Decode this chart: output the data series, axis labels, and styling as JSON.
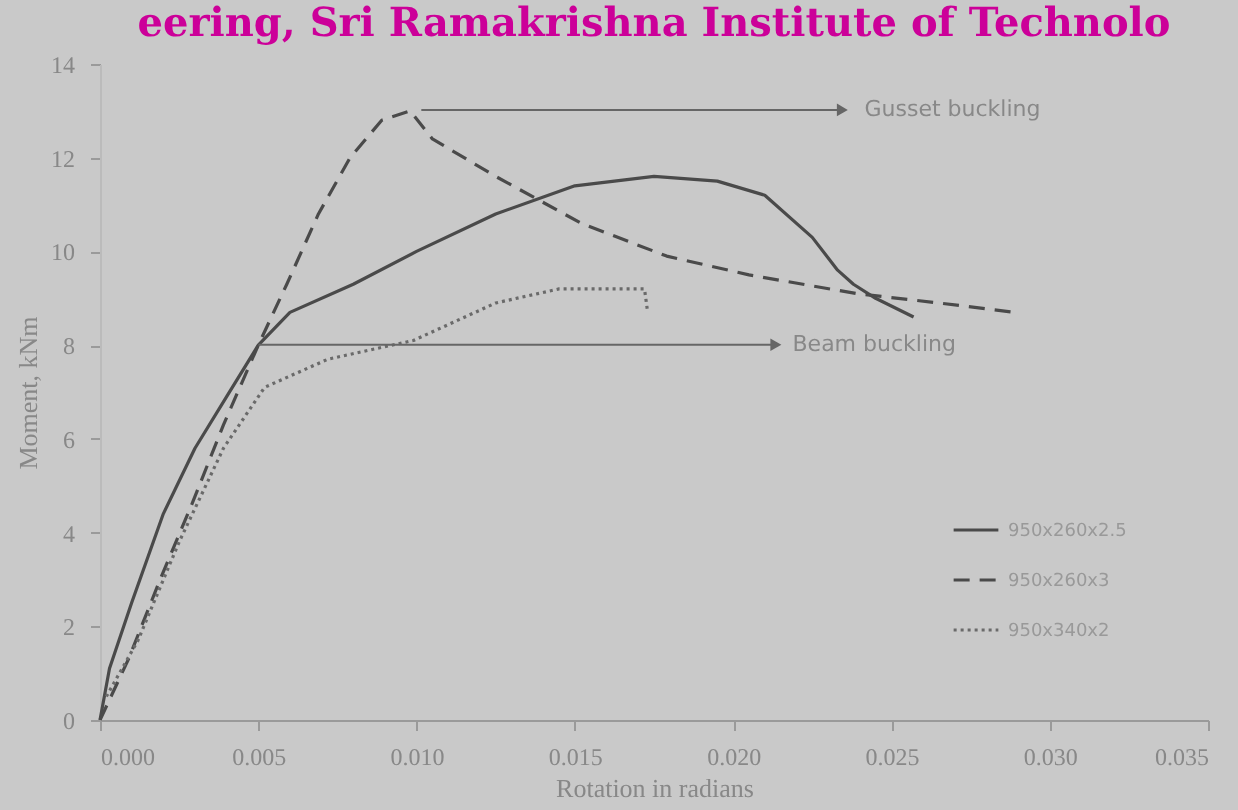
{
  "chart_data": {
    "type": "line",
    "title": "eering, Sri Ramakrishna Institute of Technolo",
    "xlabel": "Rotation in radians",
    "ylabel": "Moment, kNm",
    "xlim": [
      0,
      0.035
    ],
    "ylim": [
      0,
      14
    ],
    "xticks": [
      {
        "value": 0,
        "label": "0.000"
      },
      {
        "value": 0.005,
        "label": "0.005"
      },
      {
        "value": 0.01,
        "label": "0.010"
      },
      {
        "value": 0.015,
        "label": "0.015"
      },
      {
        "value": 0.02,
        "label": "0.020"
      },
      {
        "value": 0.025,
        "label": "0.025"
      },
      {
        "value": 0.03,
        "label": "0.030"
      },
      {
        "value": 0.035,
        "label": "0.035"
      }
    ],
    "yticks": [
      0,
      2,
      4,
      6,
      8,
      10,
      12,
      14
    ],
    "grid": false,
    "legend": "bottom right",
    "marker": "none",
    "series": [
      {
        "name": "950x260x2.5",
        "color": "#4a4a4a",
        "line_style": "solid",
        "x": [
          0,
          0.0003,
          0.001,
          0.002,
          0.003,
          0.004,
          0.005,
          0.006,
          0.008,
          0.01,
          0.0125,
          0.015,
          0.0175,
          0.0195,
          0.021,
          0.0225,
          0.0233,
          0.0238,
          0.0245,
          0.0257
        ],
        "values": [
          0,
          1.1,
          2.5,
          4.4,
          5.8,
          6.9,
          8.0,
          8.7,
          9.3,
          10.0,
          10.8,
          11.4,
          11.6,
          11.5,
          11.2,
          10.3,
          9.6,
          9.3,
          9.0,
          8.6
        ]
      },
      {
        "name": "950x260x3",
        "color": "#4a4a4a",
        "line_style": "dashed",
        "x": [
          0,
          0.0009,
          0.0019,
          0.0029,
          0.0039,
          0.005,
          0.0059,
          0.0069,
          0.0079,
          0.0089,
          0.0098,
          0.0105,
          0.0125,
          0.0152,
          0.0179,
          0.0205,
          0.0239,
          0.0265,
          0.0289
        ],
        "values": [
          0,
          1.3,
          3.0,
          4.6,
          6.3,
          8.0,
          9.3,
          10.8,
          12.0,
          12.8,
          13.0,
          12.4,
          11.6,
          10.6,
          9.9,
          9.5,
          9.1,
          8.9,
          8.7
        ]
      },
      {
        "name": "950x340x2",
        "color": "#6a6a6a",
        "line_style": "dotted",
        "x": [
          0.0002,
          0.0012,
          0.0025,
          0.0039,
          0.0052,
          0.0072,
          0.0099,
          0.0125,
          0.0145,
          0.0172,
          0.0173
        ],
        "values": [
          0.5,
          1.7,
          3.8,
          5.8,
          7.1,
          7.7,
          8.1,
          8.9,
          9.2,
          9.2,
          8.7
        ]
      }
    ],
    "annotations": [
      "Gusset buckling",
      "Beam buckling"
    ]
  }
}
